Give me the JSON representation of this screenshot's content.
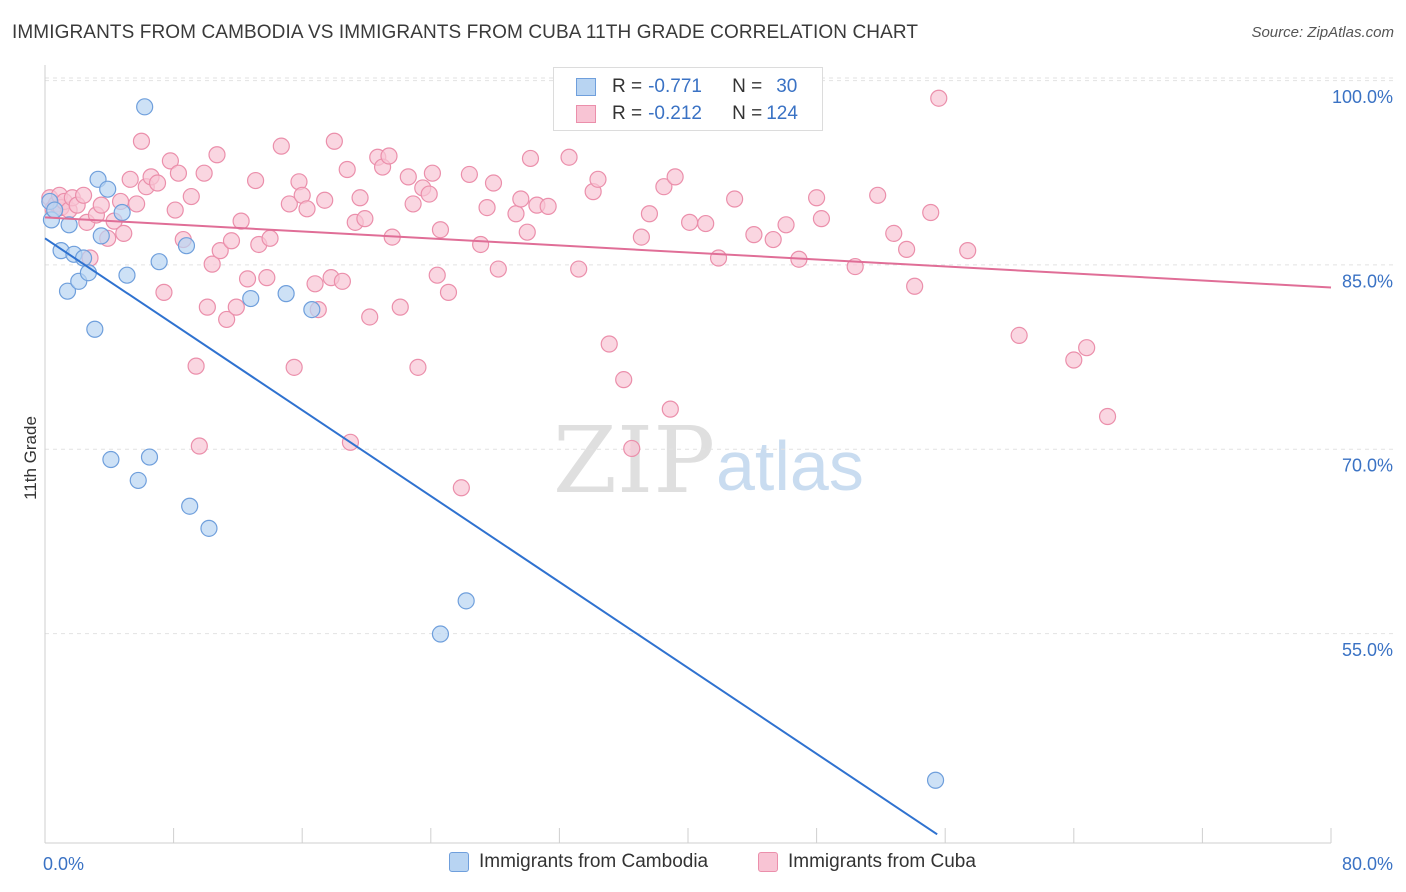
{
  "title": "IMMIGRANTS FROM CAMBODIA VS IMMIGRANTS FROM CUBA 11TH GRADE CORRELATION CHART",
  "source": "Source: ZipAtlas.com",
  "watermark": {
    "zip": "ZIP",
    "atlas": "atlas"
  },
  "legend": {
    "cambodia": {
      "r_label": "R = ",
      "r_value": "-0.771",
      "n_label": "N = ",
      "n_value": "30"
    },
    "cuba": {
      "r_label": "R = ",
      "r_value": "-0.212",
      "n_label": "N = ",
      "n_value": "124"
    }
  },
  "bottom_legend": {
    "cambodia": "Immigrants from Cambodia",
    "cuba": "Immigrants from Cuba"
  },
  "colors": {
    "cambodia_fill": "#b8d4f2",
    "cambodia_stroke": "#6f9fdc",
    "cambodia_line": "#2f72d0",
    "cuba_fill": "#f8c4d4",
    "cuba_stroke": "#eb8fab",
    "cuba_line": "#e06e97",
    "tick_text": "#3a72c4",
    "grid": "#e2e2e2"
  },
  "chart_data": {
    "type": "scatter",
    "title": "IMMIGRANTS FROM CAMBODIA VS IMMIGRANTS FROM CUBA 11TH GRADE CORRELATION CHART",
    "xlabel": "",
    "ylabel": "11th Grade",
    "xlim": [
      0,
      80
    ],
    "ylim": [
      40,
      102
    ],
    "x_tick_labels": [
      {
        "value": 0,
        "label": "0.0%"
      },
      {
        "value": 80,
        "label": "80.0%"
      }
    ],
    "y_tick_labels": [
      {
        "value": 100,
        "label": "100.0%"
      },
      {
        "value": 85,
        "label": "85.0%"
      },
      {
        "value": 70,
        "label": "70.0%"
      },
      {
        "value": 55,
        "label": "55.0%"
      }
    ],
    "series": [
      {
        "name": "Immigrants from Cambodia",
        "r": -0.771,
        "n": 30,
        "trend": {
          "x": [
            0,
            55.5
          ],
          "y": [
            88.5,
            40.0
          ]
        },
        "points": [
          [
            0.3,
            91.5
          ],
          [
            0.4,
            90.0
          ],
          [
            0.6,
            90.8
          ],
          [
            1.0,
            87.5
          ],
          [
            1.4,
            84.2
          ],
          [
            1.5,
            89.6
          ],
          [
            1.8,
            87.2
          ],
          [
            2.1,
            85.0
          ],
          [
            2.4,
            86.9
          ],
          [
            2.7,
            85.7
          ],
          [
            3.1,
            81.1
          ],
          [
            3.3,
            93.3
          ],
          [
            3.5,
            88.7
          ],
          [
            3.9,
            92.5
          ],
          [
            4.1,
            70.5
          ],
          [
            4.8,
            90.6
          ],
          [
            5.1,
            85.5
          ],
          [
            5.8,
            68.8
          ],
          [
            6.2,
            99.2
          ],
          [
            6.5,
            70.7
          ],
          [
            7.1,
            86.6
          ],
          [
            8.8,
            87.9
          ],
          [
            9.0,
            66.7
          ],
          [
            10.2,
            64.9
          ],
          [
            12.8,
            83.6
          ],
          [
            15.0,
            84.0
          ],
          [
            16.6,
            82.7
          ],
          [
            24.6,
            56.3
          ],
          [
            26.2,
            59.0
          ],
          [
            55.4,
            44.4
          ]
        ]
      },
      {
        "name": "Immigrants from Cuba",
        "r": -0.212,
        "n": 124,
        "trend": {
          "x": [
            0,
            80
          ],
          "y": [
            90.2,
            84.5
          ]
        },
        "points": [
          [
            0.3,
            91.8
          ],
          [
            0.5,
            90.9
          ],
          [
            0.7,
            91.3
          ],
          [
            0.9,
            92.0
          ],
          [
            1.0,
            91.0
          ],
          [
            1.2,
            91.5
          ],
          [
            1.5,
            90.8
          ],
          [
            1.7,
            91.8
          ],
          [
            2.0,
            91.2
          ],
          [
            2.4,
            92.0
          ],
          [
            2.6,
            89.8
          ],
          [
            2.8,
            86.9
          ],
          [
            3.2,
            90.4
          ],
          [
            3.5,
            91.2
          ],
          [
            3.9,
            88.5
          ],
          [
            4.3,
            89.9
          ],
          [
            4.7,
            91.5
          ],
          [
            4.9,
            88.9
          ],
          [
            5.3,
            93.3
          ],
          [
            5.7,
            91.3
          ],
          [
            6.0,
            96.4
          ],
          [
            6.3,
            92.7
          ],
          [
            6.6,
            93.5
          ],
          [
            7.0,
            93.0
          ],
          [
            7.4,
            84.1
          ],
          [
            7.8,
            94.8
          ],
          [
            8.1,
            90.8
          ],
          [
            8.3,
            93.8
          ],
          [
            8.6,
            88.4
          ],
          [
            9.1,
            91.9
          ],
          [
            9.4,
            78.1
          ],
          [
            9.6,
            71.6
          ],
          [
            9.9,
            93.8
          ],
          [
            10.1,
            82.9
          ],
          [
            10.4,
            86.4
          ],
          [
            10.7,
            95.3
          ],
          [
            10.9,
            87.5
          ],
          [
            11.3,
            81.9
          ],
          [
            11.6,
            88.3
          ],
          [
            11.9,
            82.9
          ],
          [
            12.2,
            89.9
          ],
          [
            12.6,
            85.2
          ],
          [
            13.1,
            93.2
          ],
          [
            13.3,
            88.0
          ],
          [
            13.8,
            85.3
          ],
          [
            14.0,
            88.5
          ],
          [
            14.7,
            96.0
          ],
          [
            15.2,
            91.3
          ],
          [
            15.5,
            78.0
          ],
          [
            15.8,
            93.1
          ],
          [
            16.0,
            92.0
          ],
          [
            16.3,
            90.9
          ],
          [
            16.8,
            84.8
          ],
          [
            17.0,
            82.7
          ],
          [
            17.4,
            91.6
          ],
          [
            17.8,
            85.3
          ],
          [
            18.0,
            96.4
          ],
          [
            18.5,
            85.0
          ],
          [
            18.8,
            94.1
          ],
          [
            19.0,
            71.9
          ],
          [
            19.3,
            89.8
          ],
          [
            19.6,
            91.8
          ],
          [
            19.9,
            90.1
          ],
          [
            20.2,
            82.1
          ],
          [
            20.7,
            95.1
          ],
          [
            21.0,
            94.3
          ],
          [
            21.4,
            95.2
          ],
          [
            21.6,
            88.6
          ],
          [
            22.1,
            82.9
          ],
          [
            22.6,
            93.5
          ],
          [
            22.9,
            91.3
          ],
          [
            23.2,
            78.0
          ],
          [
            23.5,
            92.6
          ],
          [
            23.9,
            92.1
          ],
          [
            24.1,
            93.8
          ],
          [
            24.4,
            85.5
          ],
          [
            24.6,
            89.2
          ],
          [
            25.1,
            84.1
          ],
          [
            25.9,
            68.2
          ],
          [
            26.4,
            93.7
          ],
          [
            27.1,
            88.0
          ],
          [
            27.5,
            91.0
          ],
          [
            27.9,
            93.0
          ],
          [
            28.2,
            86.0
          ],
          [
            29.3,
            90.5
          ],
          [
            29.6,
            91.7
          ],
          [
            30.0,
            89.0
          ],
          [
            30.2,
            95.0
          ],
          [
            30.6,
            91.2
          ],
          [
            31.3,
            91.1
          ],
          [
            32.6,
            95.1
          ],
          [
            33.2,
            86.0
          ],
          [
            34.1,
            92.3
          ],
          [
            34.4,
            93.3
          ],
          [
            35.1,
            79.9
          ],
          [
            36.0,
            77.0
          ],
          [
            36.5,
            71.4
          ],
          [
            37.1,
            88.6
          ],
          [
            37.6,
            90.5
          ],
          [
            38.5,
            92.7
          ],
          [
            38.9,
            74.6
          ],
          [
            39.2,
            93.5
          ],
          [
            40.1,
            89.8
          ],
          [
            41.1,
            89.7
          ],
          [
            41.9,
            86.9
          ],
          [
            42.9,
            91.7
          ],
          [
            44.1,
            88.8
          ],
          [
            45.3,
            88.4
          ],
          [
            46.1,
            89.6
          ],
          [
            46.9,
            86.8
          ],
          [
            48.0,
            91.8
          ],
          [
            48.3,
            90.1
          ],
          [
            50.4,
            86.2
          ],
          [
            51.8,
            92.0
          ],
          [
            52.8,
            88.9
          ],
          [
            53.6,
            87.6
          ],
          [
            54.1,
            84.6
          ],
          [
            55.1,
            90.6
          ],
          [
            55.6,
            99.9
          ],
          [
            57.4,
            87.5
          ],
          [
            60.6,
            80.6
          ],
          [
            64.0,
            78.6
          ],
          [
            64.8,
            79.6
          ],
          [
            66.1,
            74.0
          ]
        ]
      }
    ],
    "grid": true,
    "legend_position": "top-center"
  }
}
